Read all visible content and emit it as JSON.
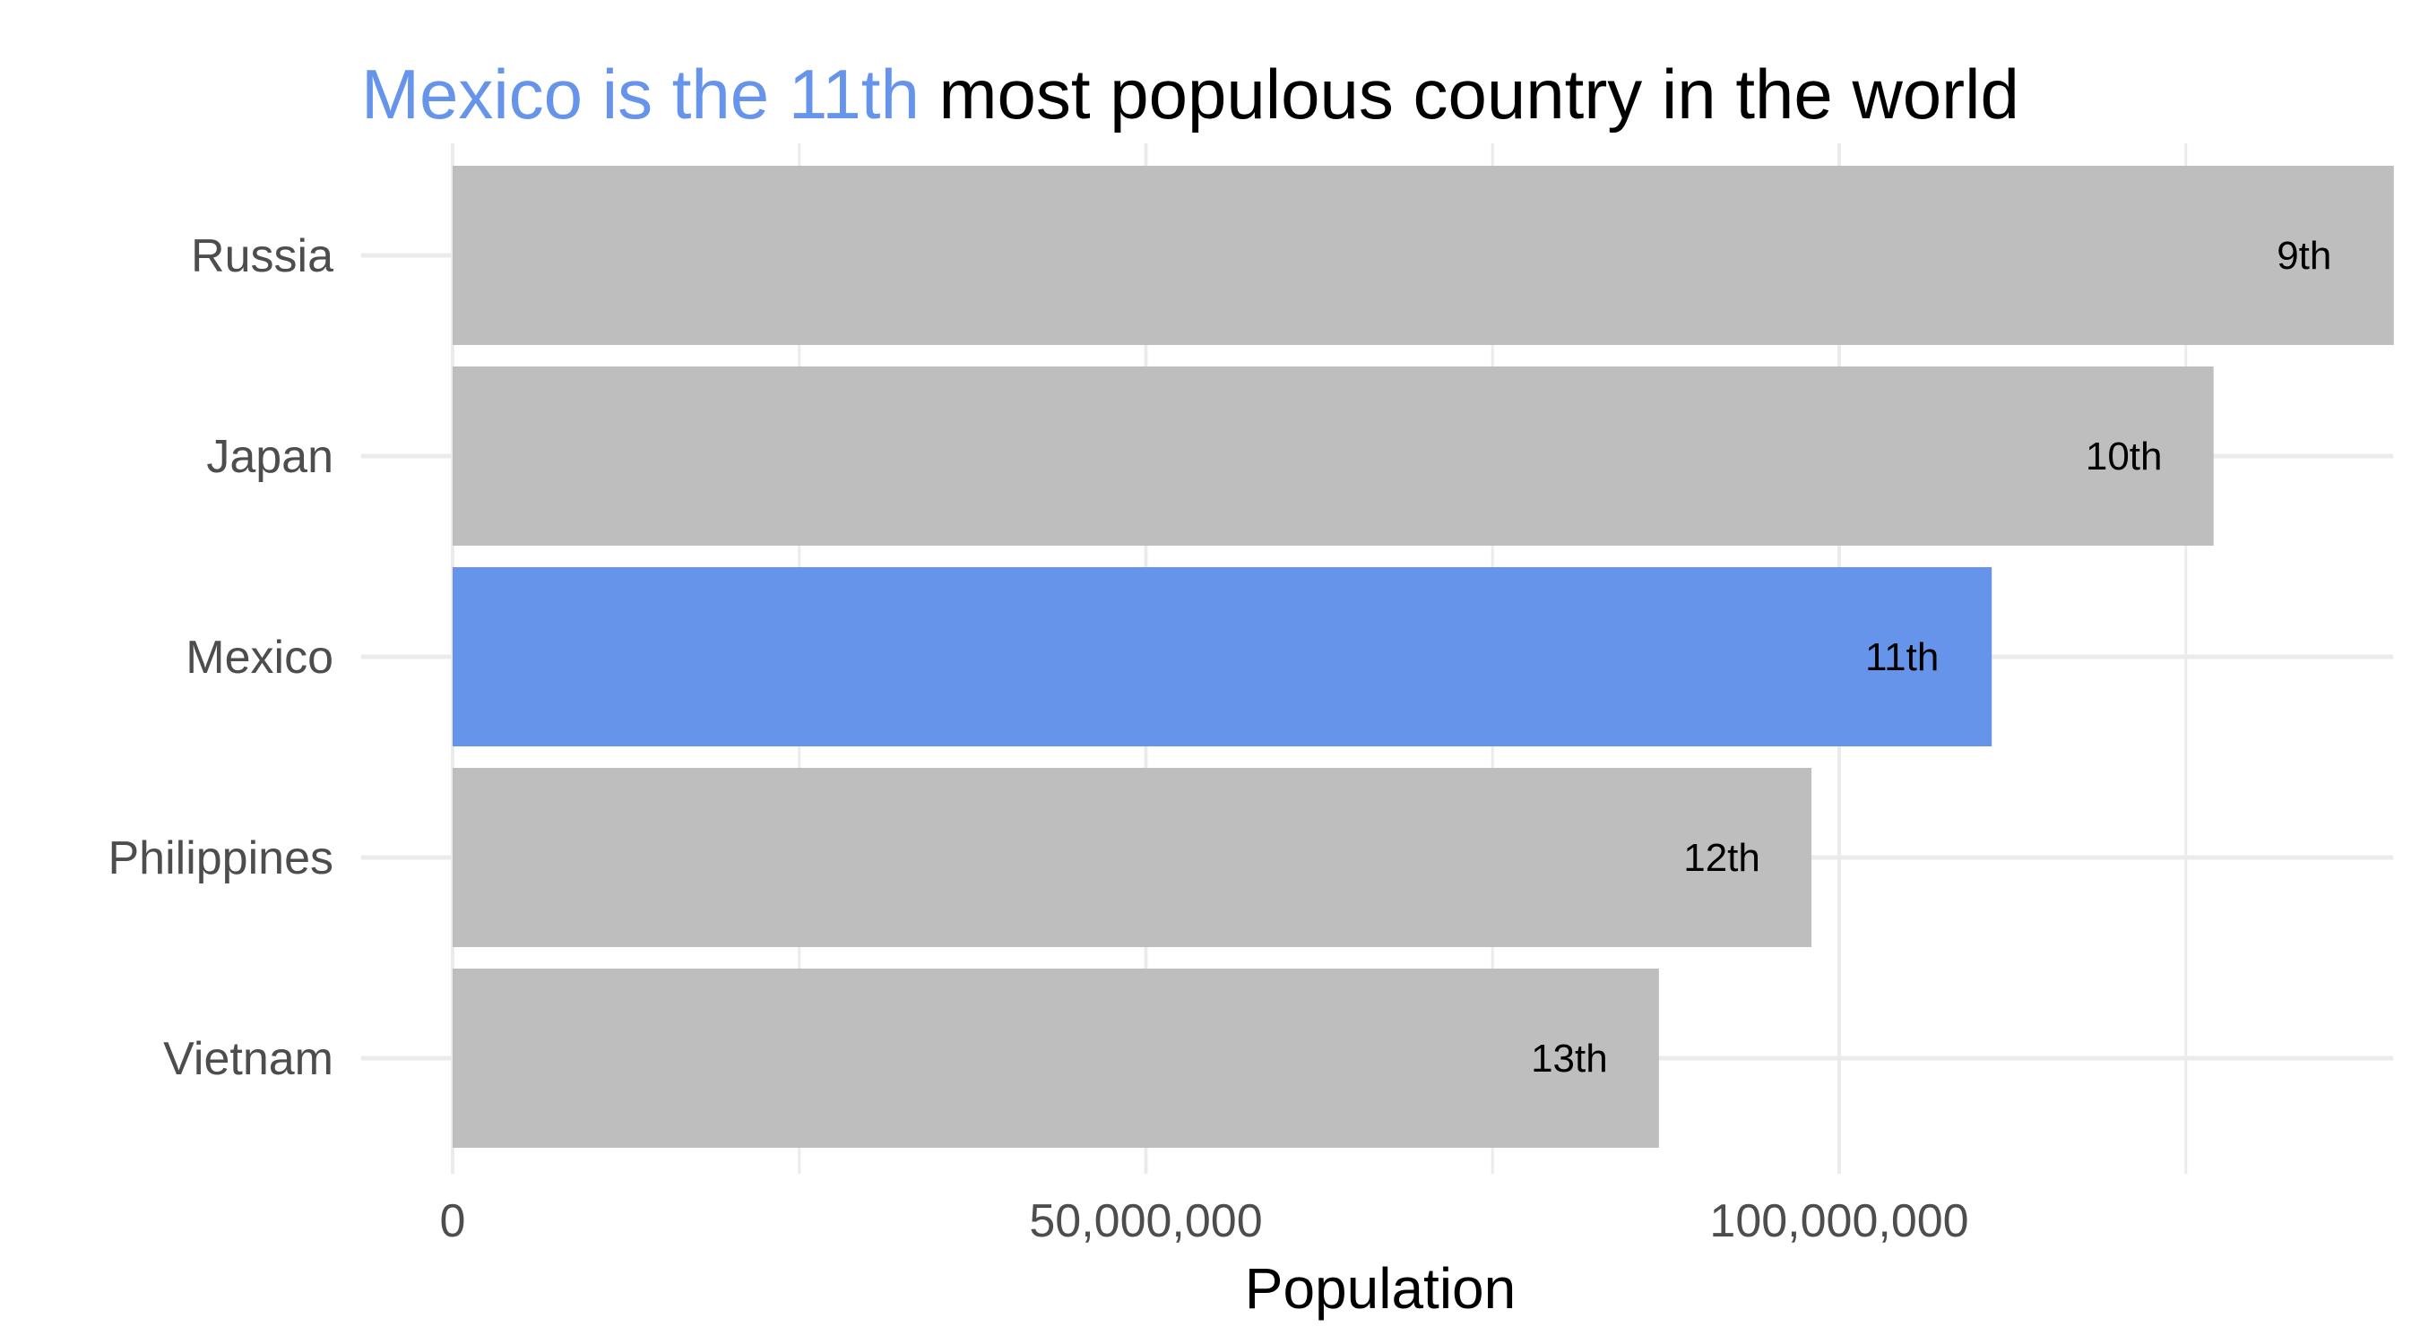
{
  "chart_data": {
    "type": "bar",
    "orientation": "horizontal",
    "title": "Mexico is the 11th most populous country in the world",
    "title_parts": {
      "highlight": "Mexico is the 11th",
      "rest": " most populous country in the world"
    },
    "categories": [
      "Russia",
      "Japan",
      "Mexico",
      "Philippines",
      "Vietnam"
    ],
    "values": [
      140000000,
      127000000,
      111000000,
      98000000,
      87000000
    ],
    "bar_labels": [
      "9th",
      "10th",
      "11th",
      "12th",
      "13th"
    ],
    "highlight_category": "Mexico",
    "xlabel": "Population",
    "ylabel": "",
    "xlim": [
      0,
      140000000
    ],
    "x_ticks": [
      0,
      50000000,
      100000000
    ],
    "x_tick_labels": [
      "0",
      "50,000,000",
      "100,000,000"
    ],
    "minor_x_gridlines": [
      25000000,
      75000000,
      125000000
    ],
    "grid": true,
    "legend": "none"
  },
  "colors": {
    "highlight": "#6694ea",
    "bar": "#bebebe",
    "grid": "#ebebeb",
    "tick_text": "#4d4d4d",
    "title_text": "#000000"
  }
}
